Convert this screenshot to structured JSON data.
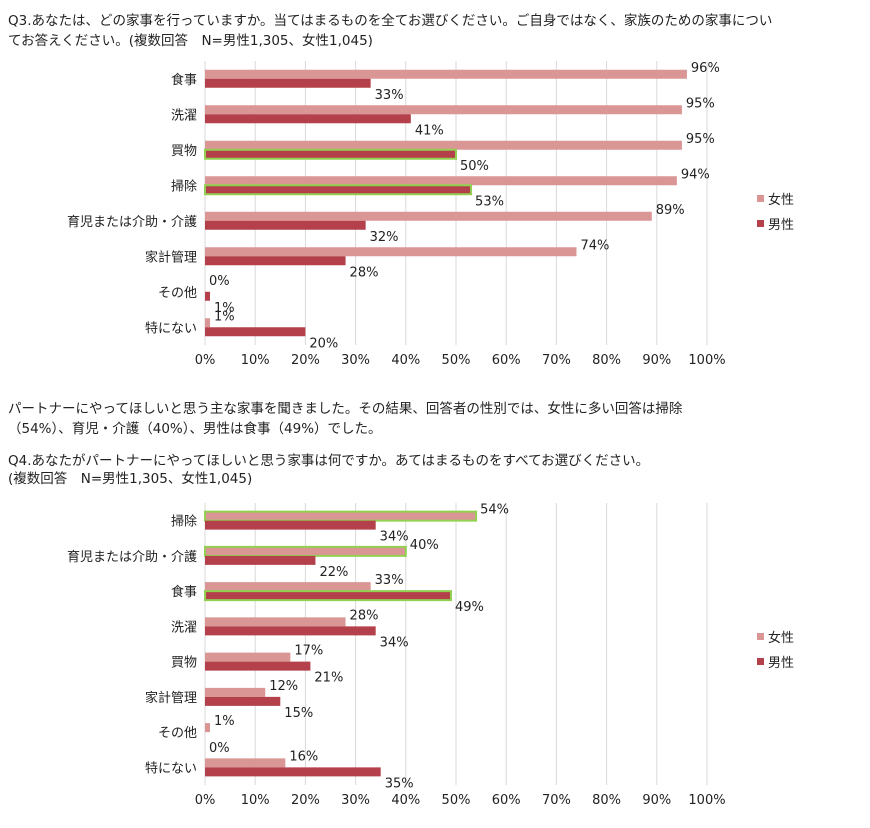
{
  "q3": {
    "title_line1": "Q3.あなたは、どの家事を行っていますか。当てはまるものを全てお選びください。ご自身ではなく、家族のための家事につい",
    "title_line2": "てお答えください。(複数回答　N=男性1,305、女性1,045)"
  },
  "summary": {
    "line1": "パートナーにやってほしいと思う主な家事を聞きました。その結果、回答者の性別では、女性に多い回答は掃除",
    "line2": "（54%）、育児・介護（40%）、男性は食事（49%）でした。"
  },
  "q4": {
    "title_line1": "Q4.あなたがパートナーにやってほしいと思う家事は何ですか。あてはまるものをすべてお選びください。",
    "title_line2": "(複数回答　N=男性1,305、女性1,045)"
  },
  "colors": {
    "female": "#d99695",
    "male": "#b3404a",
    "highlight": "#92d050",
    "grid": "#d9d9d9"
  },
  "chart_data": [
    {
      "type": "bar",
      "orientation": "horizontal",
      "categories": [
        "食事",
        "洗濯",
        "買物",
        "掃除",
        "育児または介助・介護",
        "家計管理",
        "その他",
        "特にない"
      ],
      "series": [
        {
          "name": "女性",
          "values": [
            96,
            95,
            95,
            94,
            89,
            74,
            0,
            1
          ],
          "color": "#d99695"
        },
        {
          "name": "男性",
          "values": [
            33,
            41,
            50,
            53,
            32,
            28,
            1,
            20
          ],
          "color": "#b3404a"
        }
      ],
      "highlighted": [
        {
          "series": 1,
          "category": 2
        },
        {
          "series": 1,
          "category": 3
        }
      ],
      "value_unit": "%",
      "xlim": [
        0,
        100
      ],
      "x_ticks": [
        "0%",
        "10%",
        "20%",
        "30%",
        "40%",
        "50%",
        "60%",
        "70%",
        "80%",
        "90%",
        "100%"
      ],
      "grid": true,
      "legend": "right"
    },
    {
      "type": "bar",
      "orientation": "horizontal",
      "categories": [
        "掃除",
        "育児または介助・介護",
        "食事",
        "洗濯",
        "買物",
        "家計管理",
        "その他",
        "特にない"
      ],
      "series": [
        {
          "name": "女性",
          "values": [
            54,
            40,
            33,
            28,
            17,
            12,
            1,
            16
          ],
          "color": "#d99695"
        },
        {
          "name": "男性",
          "values": [
            34,
            22,
            49,
            34,
            21,
            15,
            0,
            35
          ],
          "color": "#b3404a"
        }
      ],
      "highlighted": [
        {
          "series": 0,
          "category": 0
        },
        {
          "series": 0,
          "category": 1
        },
        {
          "series": 1,
          "category": 2
        }
      ],
      "value_unit": "%",
      "xlim": [
        0,
        100
      ],
      "x_ticks": [
        "0%",
        "10%",
        "20%",
        "30%",
        "40%",
        "50%",
        "60%",
        "70%",
        "80%",
        "90%",
        "100%"
      ],
      "grid": true,
      "legend": "right"
    }
  ]
}
